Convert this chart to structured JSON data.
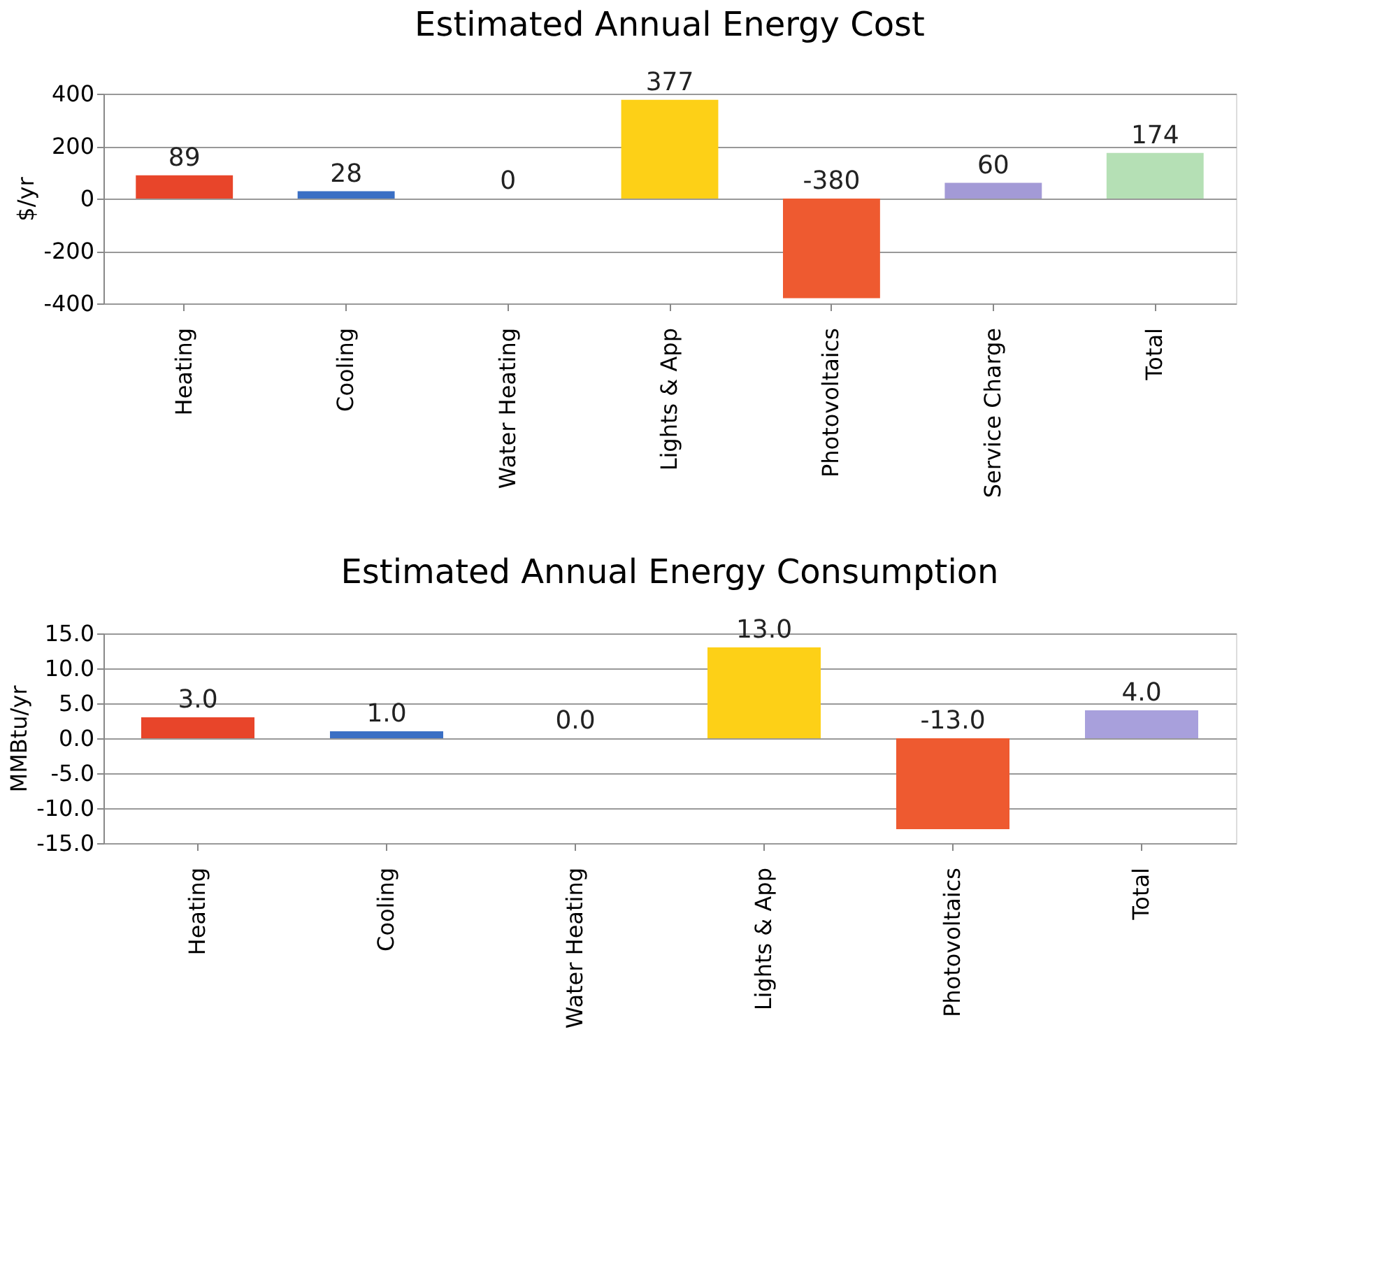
{
  "chart_data": [
    {
      "type": "bar",
      "title": "Estimated Annual Energy Cost",
      "ylabel": "$/yr",
      "categories": [
        "Heating",
        "Cooling",
        "Water Heating",
        "Lights & App",
        "Photovoltaics",
        "Service Charge",
        "Total"
      ],
      "values": [
        89,
        28,
        0,
        377,
        -380,
        60,
        174
      ],
      "colors": [
        "#e8452a",
        "#3a6fc4",
        "#d8f0d0",
        "#fdd017",
        "#ee5a30",
        "#a39ad6",
        "#b5e0b5"
      ],
      "ylim": [
        -400,
        400
      ],
      "yticks": [
        -400,
        -200,
        0,
        200,
        400
      ],
      "grid": "y",
      "data_labels": true
    },
    {
      "type": "bar",
      "title": "Estimated Annual Energy Consumption",
      "ylabel": "MMBtu/yr",
      "categories": [
        "Heating",
        "Cooling",
        "Water Heating",
        "Lights & App",
        "Photovoltaics",
        "Total"
      ],
      "values": [
        3,
        1,
        0,
        13,
        -13,
        4
      ],
      "value_labels": [
        "3.0",
        "1.0",
        "0.0",
        "13.0",
        "-13.0",
        "4.0"
      ],
      "colors": [
        "#e8452a",
        "#3a6fc4",
        "#d8f0d0",
        "#fdd017",
        "#ee5a30",
        "#a8a0dc"
      ],
      "ylim": [
        -15,
        15
      ],
      "yticks": [
        {
          "value": -15,
          "label": "-15.0"
        },
        {
          "value": -10,
          "label": "-10.0"
        },
        {
          "value": -5,
          "label": "-5.0"
        },
        {
          "value": 0,
          "label": "0.0"
        },
        {
          "value": 5,
          "label": "5.0"
        },
        {
          "value": 10,
          "label": "10.0"
        },
        {
          "value": 15,
          "label": "15.0"
        }
      ],
      "grid": "y"
    }
  ]
}
